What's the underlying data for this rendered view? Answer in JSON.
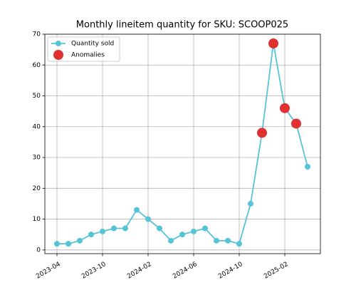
{
  "chart_data": {
    "type": "line",
    "title": "Monthly lineitem quantity for SKU: SCOOP025",
    "categories": [
      "2023-04",
      null,
      null,
      null,
      "2023-10",
      null,
      null,
      null,
      "2024-02",
      null,
      null,
      null,
      "2024-06",
      null,
      null,
      null,
      "2024-10",
      null,
      null,
      null,
      "2025-02",
      null,
      null
    ],
    "series": [
      {
        "name": "Quantity sold",
        "color": "#56c3d6",
        "style": "line",
        "values": [
          2,
          2,
          3,
          5,
          6,
          7,
          7,
          13,
          10,
          7,
          3,
          5,
          6,
          7,
          3,
          3,
          2,
          15,
          38,
          67,
          46,
          41,
          27
        ]
      },
      {
        "name": "Anomalies",
        "color": "#e03030",
        "style": "scatter",
        "values": [
          null,
          null,
          null,
          null,
          null,
          null,
          null,
          null,
          null,
          null,
          null,
          null,
          null,
          null,
          null,
          null,
          null,
          null,
          38,
          67,
          46,
          41,
          null
        ]
      }
    ],
    "ylim": [
      -1.2,
      70
    ],
    "yticks": [
      0,
      10,
      20,
      30,
      40,
      50,
      60,
      70
    ],
    "grid": true,
    "legend": "upper-left"
  }
}
